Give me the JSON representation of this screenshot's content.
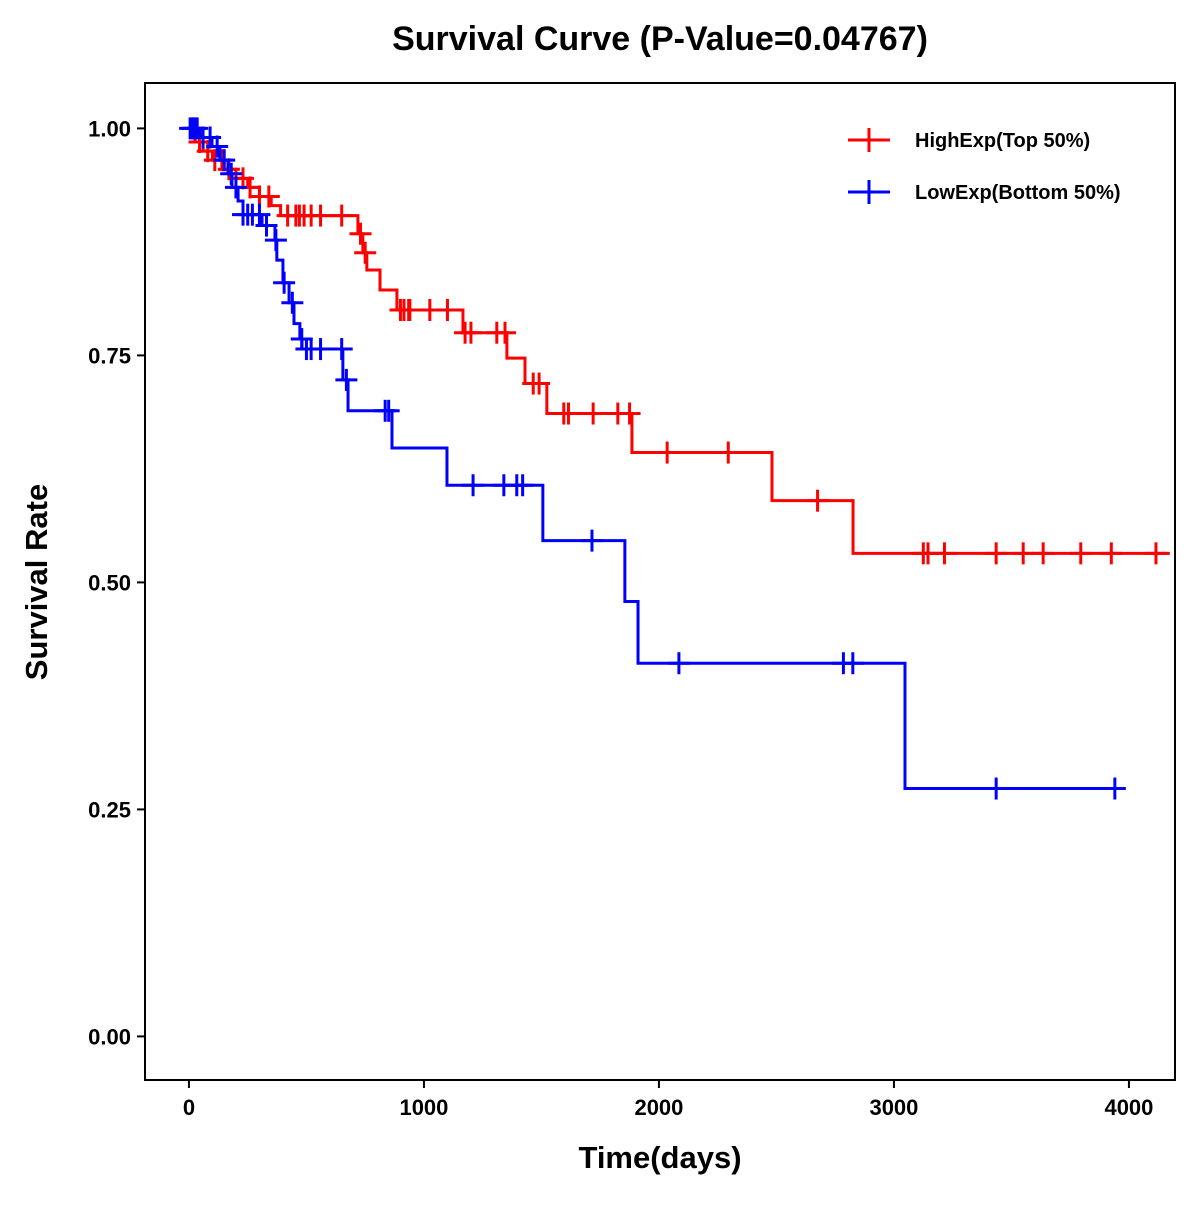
{
  "chart_data": {
    "type": "line",
    "title": "Survival Curve (P-Value=0.04767)",
    "xlabel": "Time(days)",
    "ylabel": "Survival Rate",
    "xlim": [
      -187,
      4196
    ],
    "ylim": [
      -0.048,
      1.05
    ],
    "xticks": [
      0,
      1000,
      2000,
      3000,
      4000
    ],
    "xtick_labels": [
      "0",
      "1000",
      "2000",
      "3000",
      "4000"
    ],
    "yticks": [
      0,
      0.25,
      0.5,
      0.75,
      1.0
    ],
    "ytick_labels": [
      "0.00",
      "0.25",
      "0.50",
      "0.75",
      "1.00"
    ],
    "grid": false,
    "legend_position": "top-right",
    "series": [
      {
        "name": "HighExp(Top 50%)",
        "color": "#ff0000",
        "steps": [
          [
            0,
            1.0
          ],
          [
            26,
            0.985
          ],
          [
            60,
            0.975
          ],
          [
            100,
            0.965
          ],
          [
            150,
            0.955
          ],
          [
            200,
            0.945
          ],
          [
            250,
            0.935
          ],
          [
            300,
            0.925
          ],
          [
            350,
            0.915
          ],
          [
            390,
            0.904
          ],
          [
            719,
            0.884
          ],
          [
            740,
            0.863
          ],
          [
            757,
            0.844
          ],
          [
            813,
            0.822
          ],
          [
            885,
            0.8
          ],
          [
            1166,
            0.775
          ],
          [
            1353,
            0.747
          ],
          [
            1430,
            0.719
          ],
          [
            1523,
            0.686
          ],
          [
            1885,
            0.643
          ],
          [
            2481,
            0.59
          ],
          [
            2826,
            0.532
          ]
        ],
        "end": 4174,
        "censored": [
          20,
          45,
          80,
          110,
          140,
          170,
          230,
          260,
          300,
          340,
          420,
          455,
          470,
          490,
          520,
          560,
          650,
          730,
          750,
          900,
          915,
          935,
          940,
          1025,
          1100,
          1175,
          1200,
          1310,
          1345,
          1465,
          1490,
          1595,
          1615,
          1720,
          1825,
          1875,
          2035,
          2295,
          2675,
          3125,
          3145,
          3215,
          3435,
          3550,
          3635,
          3795,
          3925,
          4115
        ]
      },
      {
        "name": "LowExp(Bottom 50%)",
        "color": "#0000ff",
        "steps": [
          [
            0,
            1.0
          ],
          [
            47,
            0.99
          ],
          [
            98,
            0.98
          ],
          [
            132,
            0.965
          ],
          [
            166,
            0.95
          ],
          [
            183,
            0.935
          ],
          [
            209,
            0.92
          ],
          [
            230,
            0.905
          ],
          [
            311,
            0.893
          ],
          [
            366,
            0.877
          ],
          [
            374,
            0.855
          ],
          [
            400,
            0.83
          ],
          [
            426,
            0.808
          ],
          [
            447,
            0.785
          ],
          [
            472,
            0.768
          ],
          [
            481,
            0.757
          ],
          [
            655,
            0.723
          ],
          [
            677,
            0.689
          ],
          [
            864,
            0.648
          ],
          [
            1098,
            0.607
          ],
          [
            1506,
            0.546
          ],
          [
            1855,
            0.479
          ],
          [
            1911,
            0.411
          ],
          [
            3047,
            0.273
          ]
        ],
        "end": 3983,
        "censored": [
          5,
          15,
          25,
          35,
          60,
          90,
          120,
          150,
          180,
          200,
          230,
          250,
          270,
          300,
          330,
          370,
          405,
          440,
          480,
          500,
          520,
          560,
          650,
          670,
          835,
          850,
          1209,
          1340,
          1395,
          1420,
          1715,
          2085,
          2785,
          2825,
          3435,
          3940
        ]
      }
    ]
  }
}
